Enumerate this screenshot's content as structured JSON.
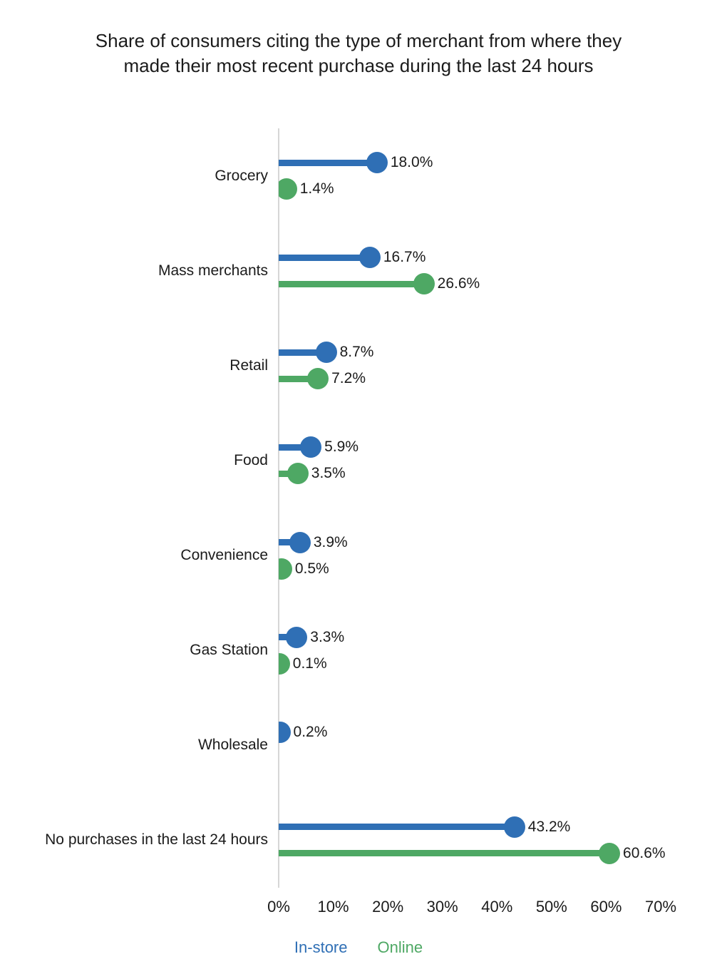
{
  "title": "Share of consumers citing the type of merchant from where they made their most recent purchase during the last 24 hours",
  "chart_data": {
    "type": "bar",
    "subtype": "horizontal-lollipop",
    "title": "Share of consumers citing the type of merchant from where they made their most recent purchase during the last 24 hours",
    "categories": [
      "Grocery",
      "Mass merchants",
      "Retail",
      "Food",
      "Convenience",
      "Gas Station",
      "Wholesale",
      "No purchases in the last 24 hours"
    ],
    "series": [
      {
        "name": "In-store",
        "color": "#2f6fb5",
        "values": [
          18.0,
          16.7,
          8.7,
          5.9,
          3.9,
          3.3,
          0.2,
          43.2
        ]
      },
      {
        "name": "Online",
        "color": "#4ea864",
        "values": [
          1.4,
          26.6,
          7.2,
          3.5,
          0.5,
          0.1,
          null,
          60.6
        ]
      }
    ],
    "data_labels": [
      [
        "18.0%",
        "1.4%"
      ],
      [
        "16.7%",
        "26.6%"
      ],
      [
        "8.7%",
        "7.2%"
      ],
      [
        "5.9%",
        "3.5%"
      ],
      [
        "3.9%",
        "0.5%"
      ],
      [
        "3.3%",
        "0.1%"
      ],
      [
        "0.2%",
        null
      ],
      [
        "43.2%",
        "60.6%"
      ]
    ],
    "xlabel": "",
    "ylabel": "",
    "xlim": [
      0,
      70
    ],
    "x_ticks": [
      "0%",
      "10%",
      "20%",
      "30%",
      "40%",
      "50%",
      "60%",
      "70%"
    ],
    "grid": false,
    "legend_position": "bottom"
  },
  "legend": {
    "items": [
      {
        "label": "In-store",
        "color": "#2f6fb5"
      },
      {
        "label": "Online",
        "color": "#4ea864"
      }
    ]
  },
  "colors": {
    "axis_line": "#d6d6d6",
    "text": "#1b1b1b"
  }
}
